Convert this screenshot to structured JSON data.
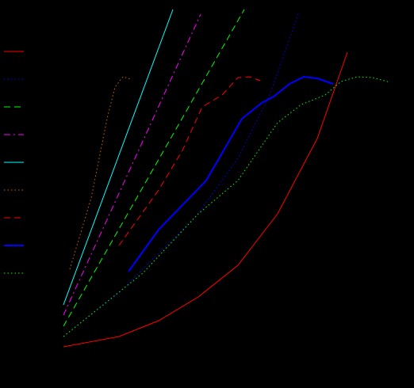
{
  "chart_data": {
    "type": "line",
    "xlim": [
      0,
      415
    ],
    "ylim": [
      0,
      430
    ],
    "series": [
      {
        "color": "#ff0000",
        "style": "solid",
        "x": [
          0,
          70,
          120,
          170,
          220,
          270,
          320,
          358
        ],
        "values": [
          2,
          15,
          35,
          65,
          105,
          170,
          265,
          374
        ]
      },
      {
        "color": "#0000ff",
        "style": "dotted",
        "x": [
          0,
          70,
          120,
          170,
          220,
          260,
          297
        ],
        "values": [
          15,
          70,
          120,
          170,
          240,
          320,
          425
        ]
      },
      {
        "color": "#00ff00",
        "style": "dashed",
        "x": [
          0,
          228
        ],
        "values": [
          28,
          428
        ]
      },
      {
        "color": "#ff00ff",
        "style": "dashdot",
        "x": [
          0,
          173
        ],
        "values": [
          42,
          422
        ]
      },
      {
        "color": "#00ffff",
        "style": "solid",
        "x": [
          0,
          138
        ],
        "values": [
          55,
          428
        ]
      },
      {
        "color": "#cc6600",
        "style": "dotted",
        "x": [
          8,
          20,
          35,
          45,
          55,
          65,
          75,
          85
        ],
        "values": [
          100,
          140,
          190,
          240,
          290,
          330,
          343,
          340
        ]
      },
      {
        "color": "#ff0000",
        "style": "dashed",
        "x": [
          70,
          120,
          150,
          175,
          200,
          220,
          235,
          248
        ],
        "values": [
          130,
          200,
          250,
          305,
          320,
          342,
          343,
          338
        ]
      },
      {
        "color": "#0000ff",
        "style": "thick",
        "x": [
          82,
          120,
          180,
          225,
          250,
          265,
          285,
          303,
          320,
          340
        ],
        "values": [
          97,
          150,
          212,
          290,
          310,
          318,
          334,
          343,
          341,
          334
        ]
      },
      {
        "color": "#00ff00",
        "style": "dotted",
        "x": [
          0,
          100,
          170,
          220,
          270,
          300,
          330,
          350,
          370,
          390,
          412
        ],
        "values": [
          15,
          95,
          170,
          212,
          285,
          308,
          320,
          337,
          343,
          342,
          336
        ]
      }
    ]
  }
}
